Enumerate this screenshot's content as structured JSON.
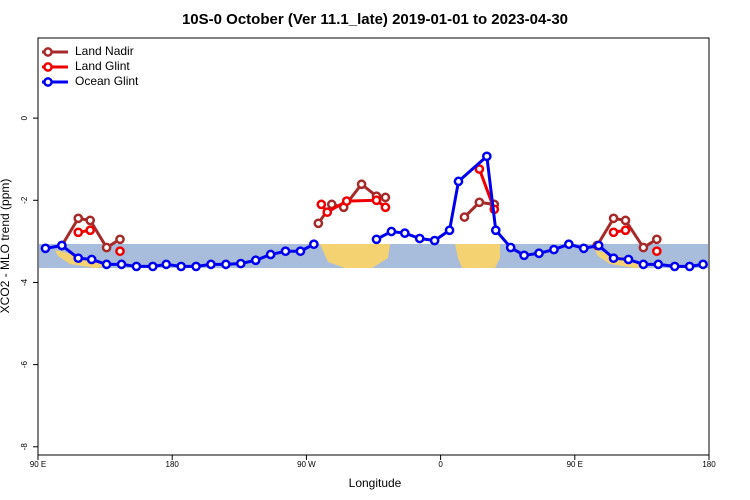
{
  "chart_data": {
    "type": "line",
    "title": "10S-0 October (Ver 11.1_late)   2019-01-01 to 2023-04-30",
    "x_label": "Longitude",
    "y_label": "XCO2 - MLO trend (ppm)",
    "xlim": [
      90,
      540
    ],
    "ylim": [
      -8.2,
      1.95
    ],
    "xticks": [
      {
        "value": 90,
        "label": "90 E"
      },
      180,
      {
        "value": 270,
        "label": "90 W"
      },
      {
        "value": 360,
        "label": "0"
      },
      {
        "value": 450,
        "label": "90 E"
      },
      {
        "value": 540,
        "label": "180"
      }
    ],
    "yticks": [
      0,
      -2,
      -4,
      -6,
      -8
    ],
    "legend": "top-left",
    "series": [
      {
        "name": "Land Nadir",
        "color": "#a52a2a",
        "x": [
          106,
          117,
          125,
          136,
          145,
          210,
          278,
          287,
          295,
          307,
          317,
          323,
          350,
          376,
          386,
          396,
          430,
          465,
          476,
          484,
          496,
          505
        ],
        "values": [
          -3.1,
          -2.44,
          -2.49,
          -3.15,
          -2.95,
          null,
          -2.56,
          -2.1,
          -2.17,
          -1.61,
          -1.9,
          -1.93,
          null,
          -2.41,
          -2.05,
          -2.1,
          null,
          -3.1,
          -2.44,
          -2.49,
          -3.15,
          -2.95
        ]
      },
      {
        "name": "Land Glint",
        "color": "#ee0000",
        "x": [
          117,
          125,
          133,
          145,
          210,
          280,
          284,
          297,
          317,
          323,
          350,
          386,
          396,
          430,
          476,
          484,
          495,
          505
        ],
        "values": [
          -2.78,
          -2.73,
          null,
          -3.24,
          null,
          -2.1,
          -2.29,
          -2.02,
          -2.0,
          -2.17,
          null,
          -1.24,
          -2.22,
          null,
          -2.78,
          -2.73,
          null,
          -3.24
        ]
      },
      {
        "name": "Ocean Glint",
        "color": "#0000ee",
        "x": [
          95,
          106,
          117,
          126,
          136,
          146,
          156,
          167,
          176,
          186,
          196,
          206,
          216,
          226,
          236,
          246,
          256,
          266,
          275,
          295,
          317,
          327,
          336,
          346,
          356,
          366,
          372,
          391,
          397,
          407,
          416,
          426,
          436,
          446,
          456,
          466,
          476,
          486,
          496,
          506,
          517,
          527,
          536
        ],
        "values": [
          -3.17,
          -3.1,
          -3.41,
          -3.44,
          -3.56,
          -3.56,
          -3.61,
          -3.61,
          -3.56,
          -3.61,
          -3.61,
          -3.56,
          -3.56,
          -3.54,
          -3.46,
          -3.32,
          -3.24,
          -3.24,
          -3.07,
          null,
          -2.95,
          -2.76,
          -2.8,
          -2.93,
          -2.98,
          -2.73,
          -1.54,
          -0.93,
          -2.73,
          -3.15,
          -3.34,
          -3.29,
          -3.2,
          -3.07,
          -3.17,
          -3.1,
          -3.41,
          -3.44,
          -3.56,
          -3.56,
          -3.61,
          -3.61,
          -3.56
        ]
      }
    ]
  }
}
